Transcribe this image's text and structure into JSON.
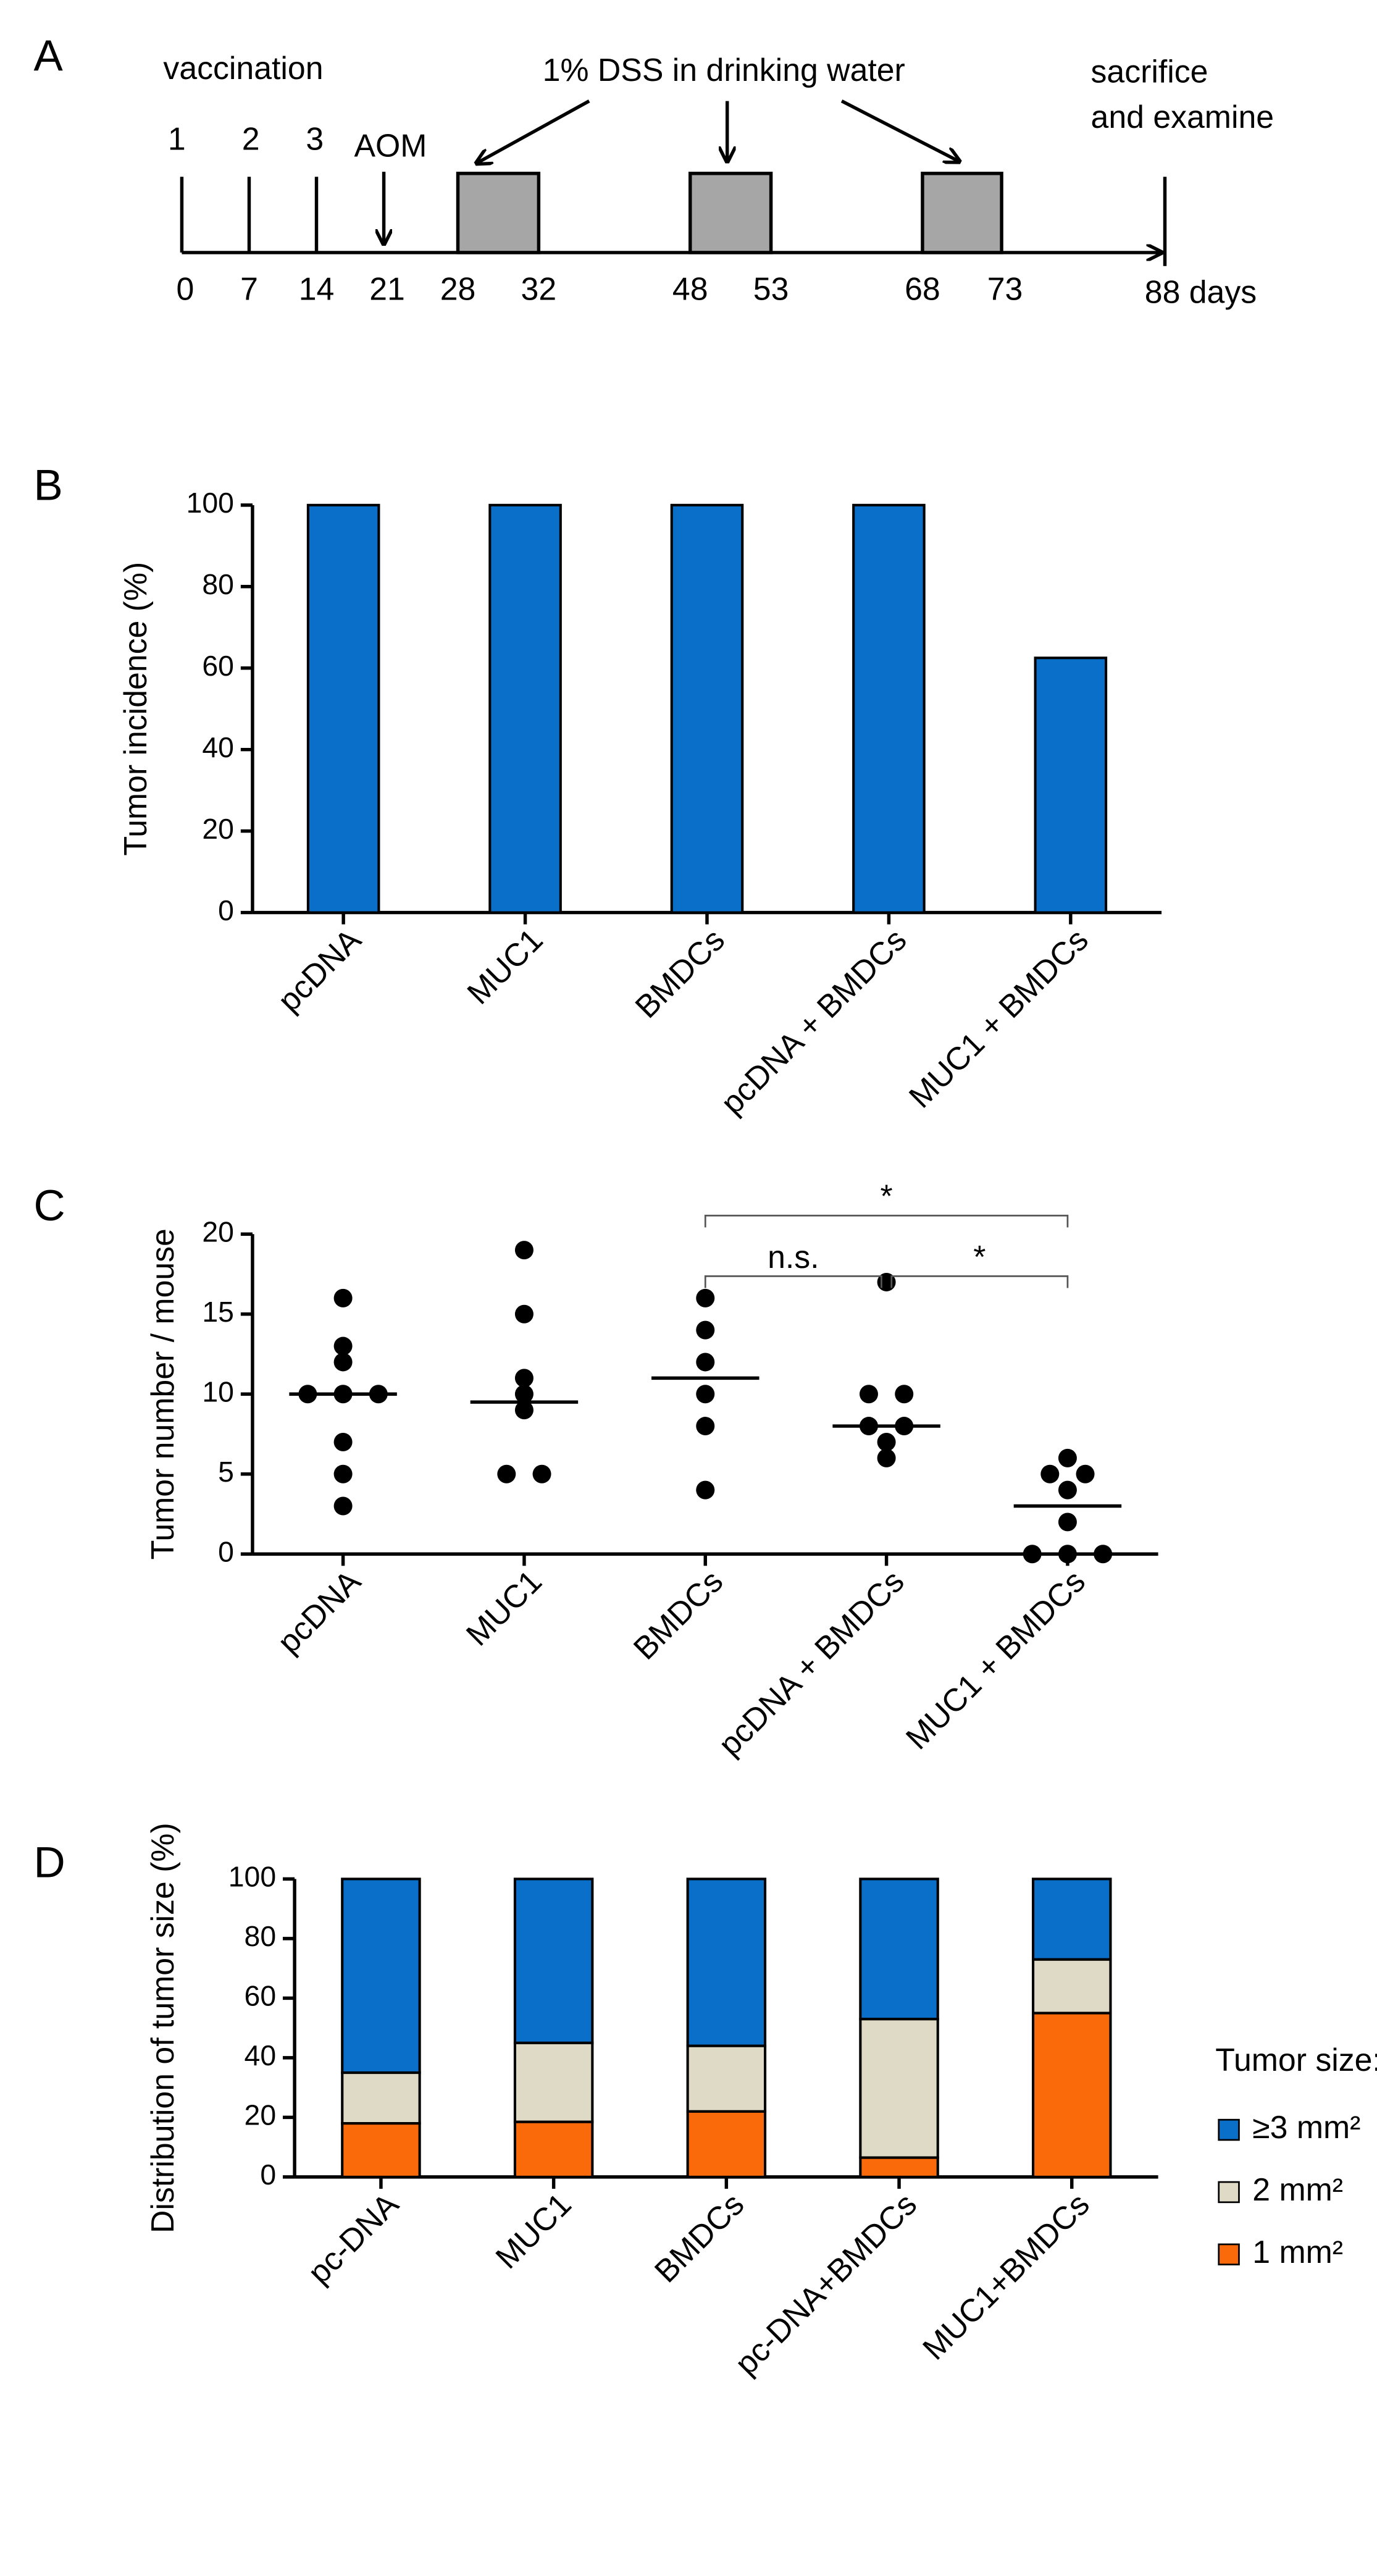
{
  "timeline": {
    "panel": "A",
    "vaccination": "vaccination",
    "doses": [
      "1",
      "2",
      "3"
    ],
    "aom": "AOM",
    "dss": "1% DSS in drinking water",
    "end": [
      "sacrifice",
      "and examine"
    ],
    "days": [
      "0",
      "7",
      "14",
      "21",
      "28",
      "32",
      "48",
      "53",
      "68",
      "73",
      "88 days"
    ]
  },
  "chart_data": [
    {
      "type": "bar",
      "panel": "B",
      "ylabel": "Tumor incidence (%)",
      "categories": [
        "pcDNA",
        "MUC1",
        "BMDCs",
        "pcDNA + BMDCs",
        "MUC1 + BMDCs"
      ],
      "values": [
        100,
        100,
        100,
        100,
        62.5
      ],
      "color": "#0a6fc8",
      "ylim": [
        0,
        100
      ],
      "yticks": [
        0,
        20,
        40,
        60,
        80,
        100
      ]
    },
    {
      "type": "dot",
      "panel": "C",
      "ylabel": "Tumor number / mouse",
      "categories": [
        "pcDNA",
        "MUC1",
        "BMDCs",
        "pcDNA + BMDCs",
        "MUC1 + BMDCs"
      ],
      "points": [
        [
          16,
          13,
          12,
          10,
          10,
          10,
          7,
          5,
          3
        ],
        [
          19,
          15,
          11,
          10,
          9,
          5,
          5
        ],
        [
          16,
          14,
          12,
          10,
          8,
          4
        ],
        [
          17,
          10,
          10,
          8,
          8,
          7,
          6
        ],
        [
          6,
          5,
          5,
          4,
          2,
          0,
          0,
          0
        ]
      ],
      "means": [
        10,
        9.5,
        11,
        8,
        3
      ],
      "color": "#000000",
      "annotations": [
        "n.s.",
        "*",
        "*"
      ],
      "ylim": [
        0,
        20
      ],
      "yticks": [
        0,
        5,
        10,
        15,
        20
      ]
    },
    {
      "type": "stacked_bar",
      "panel": "D",
      "ylabel": "Distribution of tumor size (%)",
      "categories": [
        "pc-DNA",
        "MUC1",
        "BMDCs",
        "pc-DNA+BMDCs",
        "MUC1+BMDCs"
      ],
      "series": [
        {
          "name": "1 mm²",
          "color": "#fa6a0a",
          "values": [
            18,
            18.5,
            22,
            6.5,
            55
          ]
        },
        {
          "name": "2 mm²",
          "color": "#dfdac6",
          "values": [
            17,
            26.5,
            22,
            46.5,
            18
          ]
        },
        {
          "name": "≥3 mm²",
          "color": "#0a6fc8",
          "values": [
            65,
            55,
            56,
            47,
            27
          ]
        }
      ],
      "legend_title": "Tumor size:",
      "ylim": [
        0,
        100
      ],
      "yticks": [
        0,
        20,
        40,
        60,
        80,
        100
      ]
    }
  ]
}
